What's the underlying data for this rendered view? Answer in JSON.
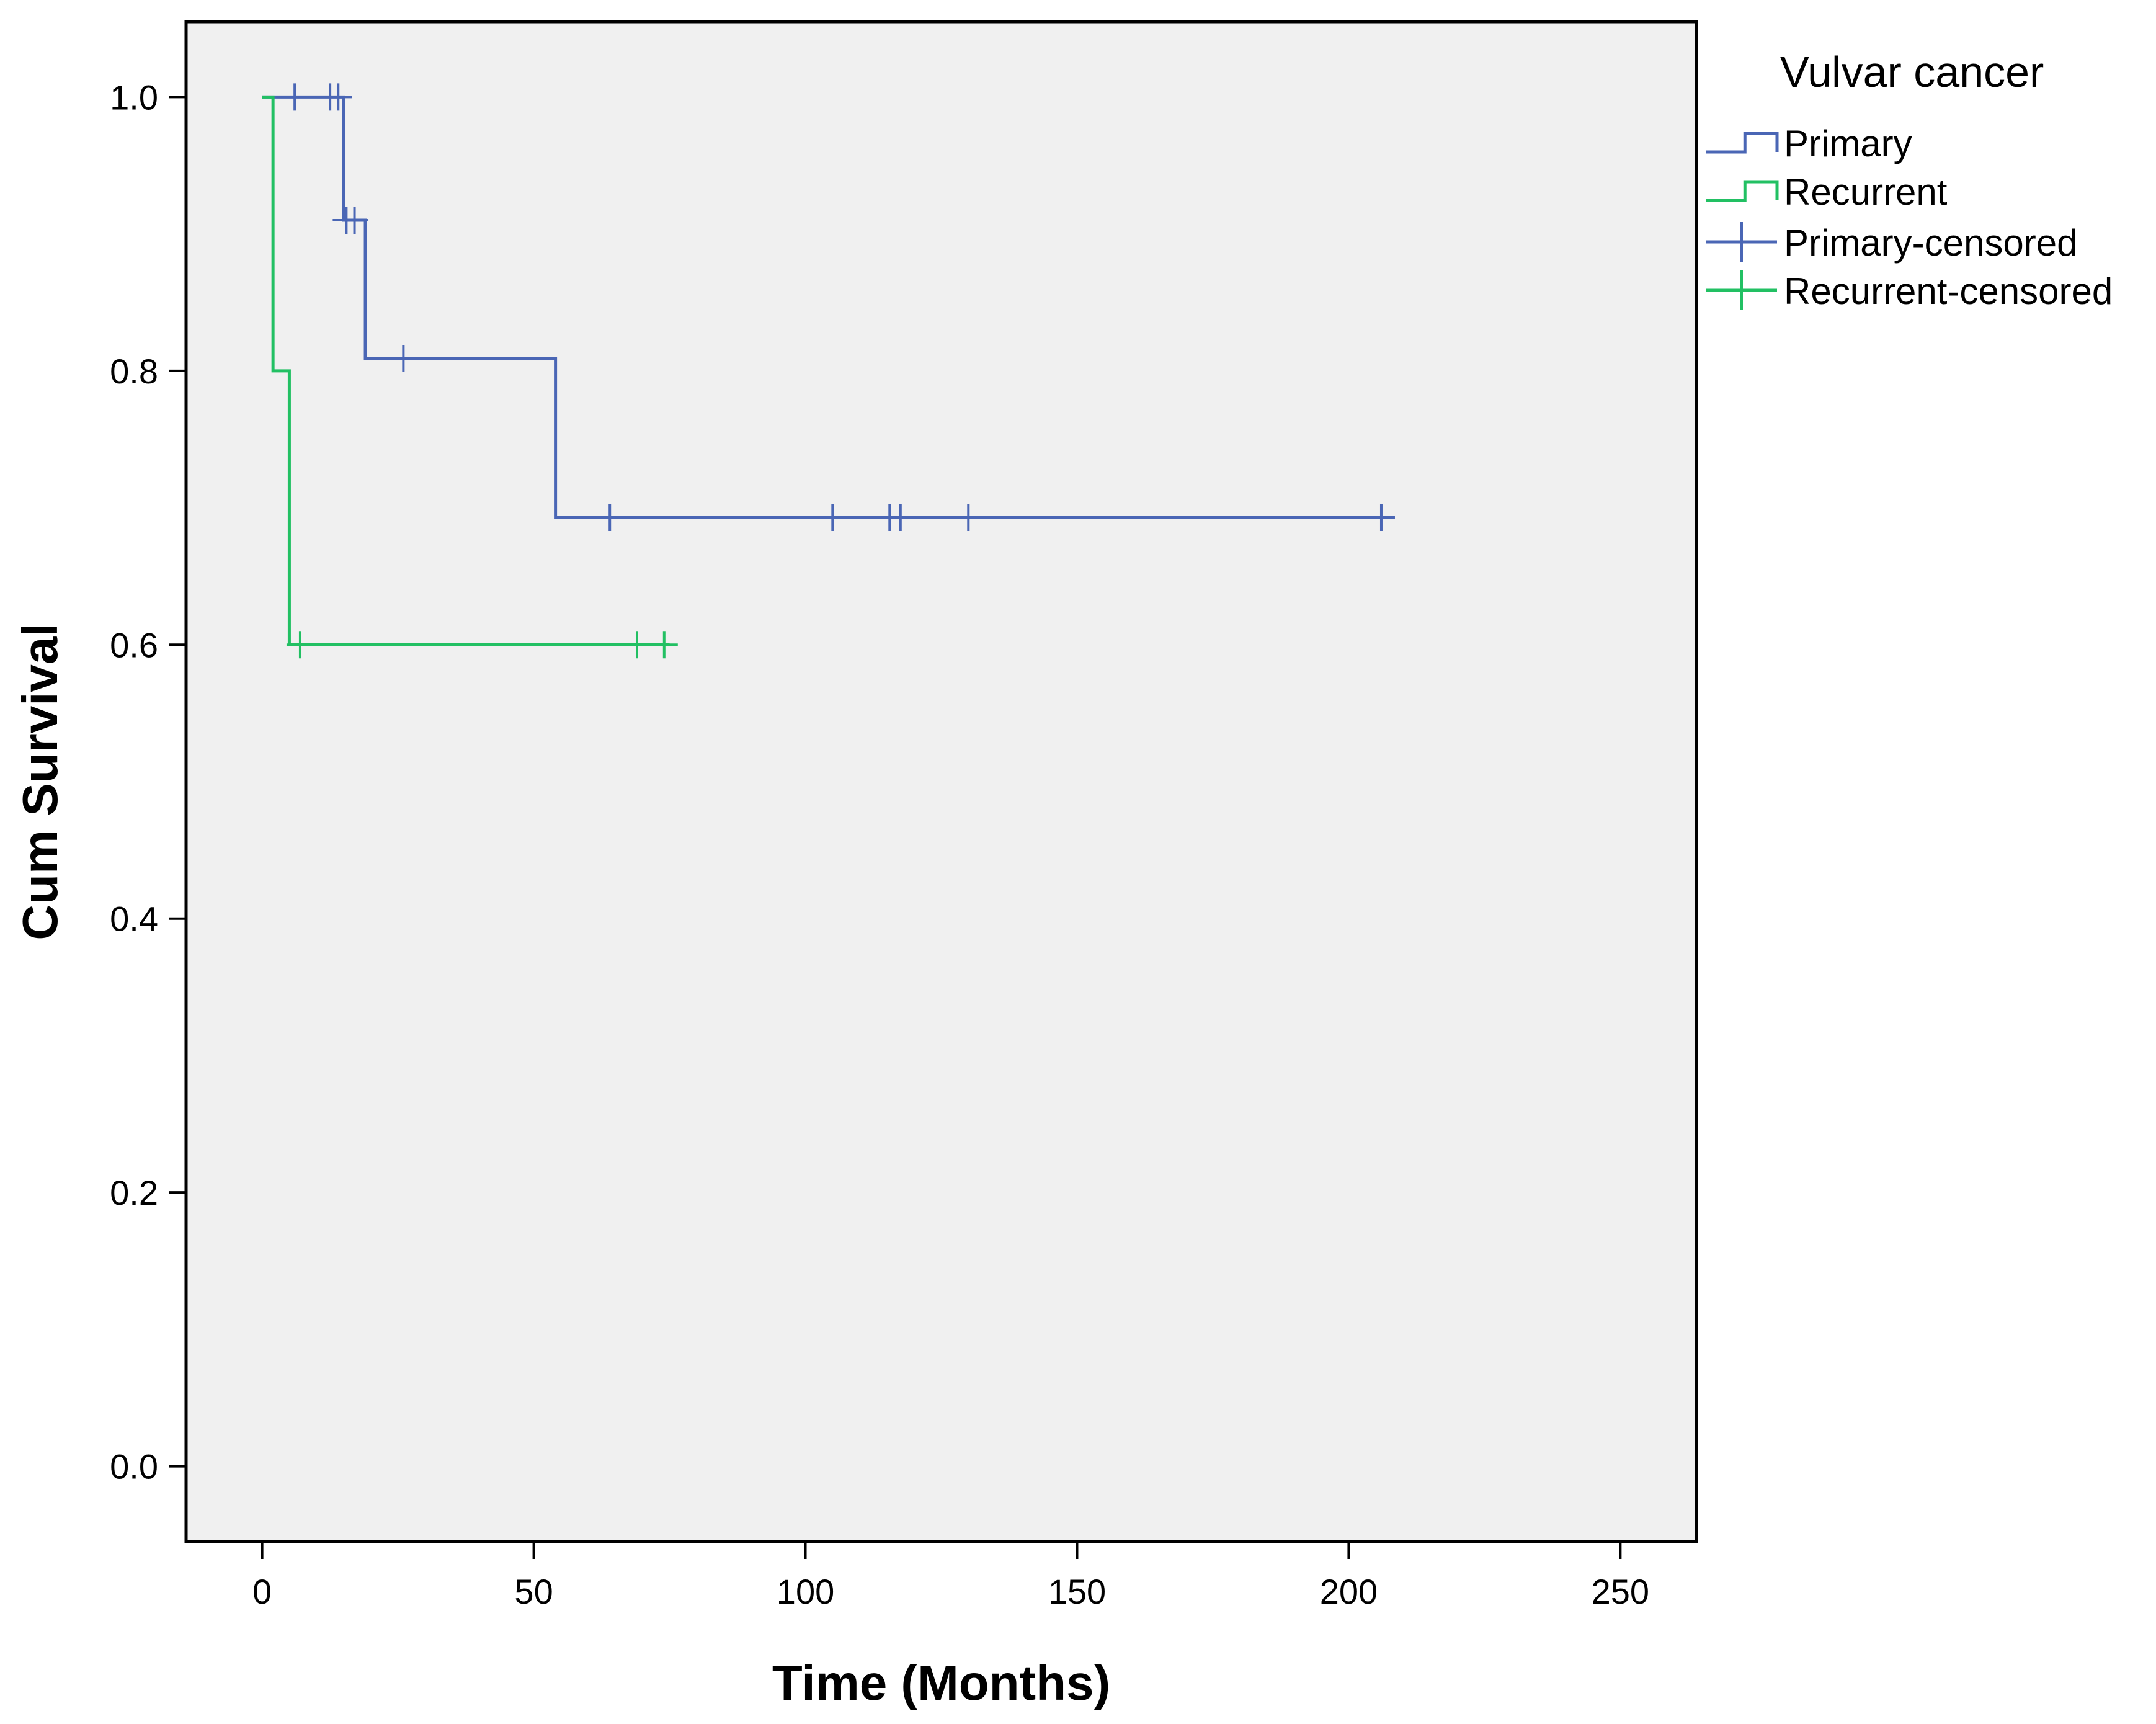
{
  "chart_data": {
    "type": "line",
    "subtype": "kaplan-meier",
    "title": "",
    "xlabel": "Time (Months)",
    "ylabel": "Cum Survival",
    "xlim": [
      -14,
      264
    ],
    "ylim": [
      -0.055,
      1.055
    ],
    "xticks": [
      0,
      50,
      100,
      150,
      200,
      250
    ],
    "xtick_labels": [
      "0",
      "50",
      "100",
      "150",
      "200",
      "250"
    ],
    "yticks": [
      0.0,
      0.2,
      0.4,
      0.6,
      0.8,
      1.0
    ],
    "ytick_labels": [
      "0.0",
      "0.2",
      "0.4",
      "0.6",
      "0.8",
      "1.0"
    ],
    "grid": false,
    "plot_background": "#f0f0f0",
    "legend": {
      "title": "Vulvar cancer",
      "placement": "right-top-outside",
      "entries": [
        {
          "label": "Primary",
          "kind": "step",
          "color": "#4a66b5"
        },
        {
          "label": "Recurrent",
          "kind": "step",
          "color": "#22c063"
        },
        {
          "label": "Primary-censored",
          "kind": "censor",
          "color": "#4a66b5"
        },
        {
          "label": "Recurrent-censored",
          "kind": "censor",
          "color": "#22c063"
        }
      ]
    },
    "series": [
      {
        "name": "Primary",
        "color": "#4a66b5",
        "steps": [
          [
            0,
            1.0
          ],
          [
            15,
            0.91
          ],
          [
            19,
            0.809
          ],
          [
            54,
            0.693
          ],
          [
            207,
            0.693
          ]
        ],
        "censored": [
          [
            6,
            1.0
          ],
          [
            12.5,
            1.0
          ],
          [
            14,
            1.0
          ],
          [
            15.5,
            0.91
          ],
          [
            17,
            0.91
          ],
          [
            26,
            0.809
          ],
          [
            64,
            0.693
          ],
          [
            105,
            0.693
          ],
          [
            115.5,
            0.693
          ],
          [
            117.5,
            0.693
          ],
          [
            130,
            0.693
          ],
          [
            206,
            0.693
          ]
        ]
      },
      {
        "name": "Recurrent",
        "color": "#22c063",
        "steps": [
          [
            0,
            1.0
          ],
          [
            2,
            0.8
          ],
          [
            5,
            0.6
          ],
          [
            75,
            0.6
          ]
        ],
        "censored": [
          [
            7,
            0.6
          ],
          [
            69,
            0.6
          ],
          [
            74,
            0.6
          ]
        ]
      }
    ]
  }
}
